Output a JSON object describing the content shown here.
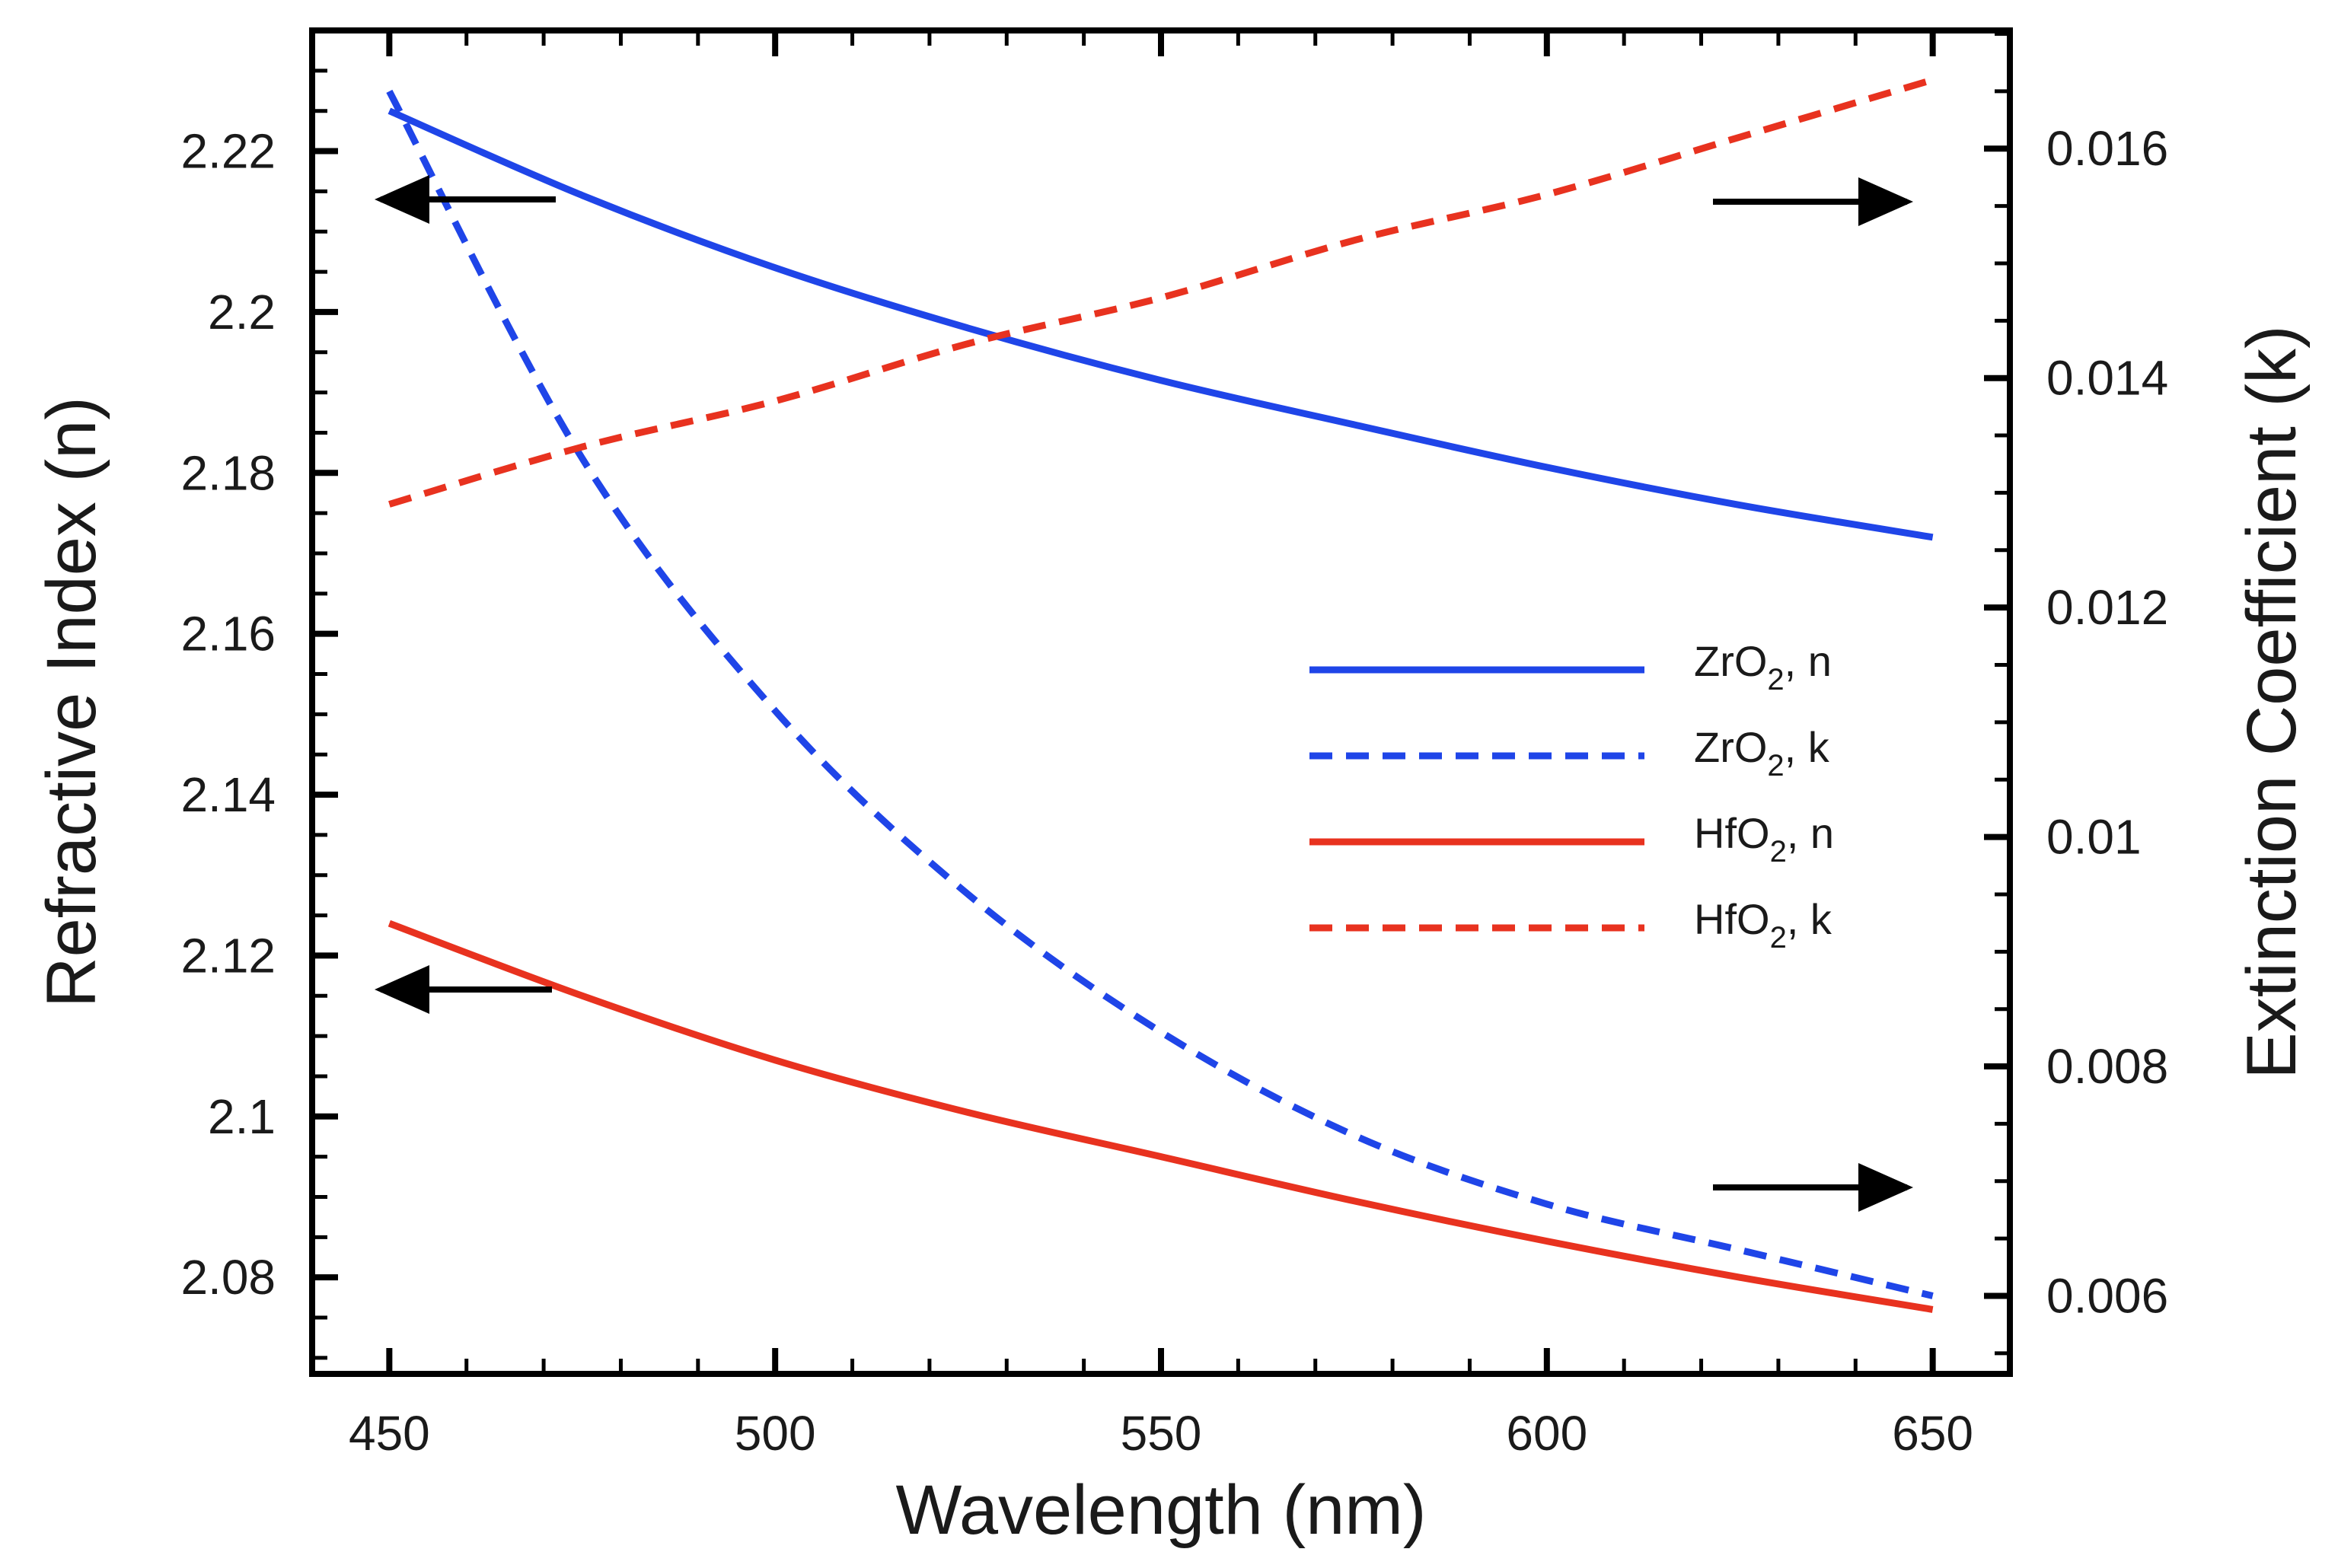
{
  "chart_data": {
    "type": "line",
    "title": "",
    "xlabel": "Wavelength (nm)",
    "ylabel_left": "Refractive Index (n)",
    "ylabel_right": "Extinction Coefficient (k)",
    "xlim": [
      440,
      660
    ],
    "ylim_left": [
      2.068,
      2.235
    ],
    "ylim_right": [
      0.00532,
      0.01703
    ],
    "xticks": [
      450,
      500,
      550,
      600,
      650
    ],
    "yticks_left": [
      2.08,
      2.1,
      2.12,
      2.14,
      2.16,
      2.18,
      2.2,
      2.22
    ],
    "yticks_right": [
      0.006,
      0.008,
      0.01,
      0.012,
      0.014,
      0.016
    ],
    "x": [
      450,
      475,
      500,
      525,
      550,
      575,
      600,
      625,
      650
    ],
    "series": [
      {
        "name": "ZrO2, n",
        "legend_main": "ZrO",
        "legend_sub": "2",
        "legend_tail": ", n",
        "axis": "left",
        "color": "#1f45e8",
        "style": "solid",
        "values": [
          2.225,
          2.2145,
          2.2055,
          2.198,
          2.1915,
          2.186,
          2.1807,
          2.176,
          2.172
        ]
      },
      {
        "name": "ZrO2, k",
        "legend_main": "ZrO",
        "legend_sub": "2",
        "legend_tail": ", k",
        "axis": "right",
        "color": "#1f45e8",
        "style": "dashed",
        "values": [
          0.0165,
          0.0133,
          0.0111,
          0.0095,
          0.0083,
          0.0074,
          0.0068,
          0.0064,
          0.006
        ]
      },
      {
        "name": "HfO2, n",
        "legend_main": "HfO",
        "legend_sub": "2",
        "legend_tail": ", n",
        "axis": "left",
        "color": "#e8321f",
        "style": "solid",
        "values": [
          2.124,
          2.115,
          2.107,
          2.1005,
          2.095,
          2.0895,
          2.0845,
          2.08,
          2.076
        ]
      },
      {
        "name": "HfO2, k",
        "legend_main": "HfO",
        "legend_sub": "2",
        "legend_tail": ", k",
        "axis": "right",
        "color": "#e8321f",
        "style": "dashed",
        "values": [
          0.0129,
          0.0134,
          0.0138,
          0.0143,
          0.0147,
          0.0152,
          0.0156,
          0.0161,
          0.0166
        ]
      }
    ],
    "legend_position": "center-right",
    "annotations": [
      {
        "type": "arrow",
        "direction": "left",
        "points_to": "left axis",
        "series": "ZrO2, n"
      },
      {
        "type": "arrow",
        "direction": "left",
        "points_to": "left axis",
        "series": "HfO2, n"
      },
      {
        "type": "arrow",
        "direction": "right",
        "points_to": "right axis",
        "series": "HfO2, k"
      },
      {
        "type": "arrow",
        "direction": "right",
        "points_to": "right axis",
        "series": "ZrO2, k"
      }
    ]
  }
}
